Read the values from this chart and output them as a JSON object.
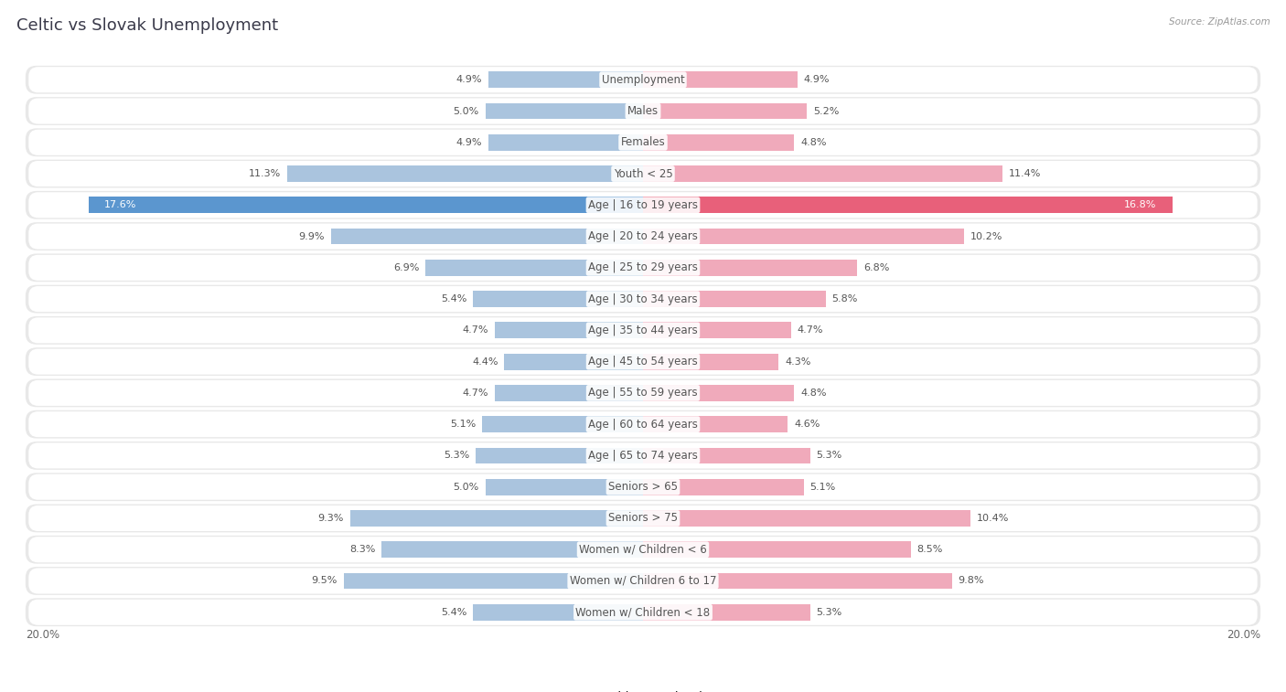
{
  "title": "Celtic vs Slovak Unemployment",
  "source": "Source: ZipAtlas.com",
  "categories": [
    "Unemployment",
    "Males",
    "Females",
    "Youth < 25",
    "Age | 16 to 19 years",
    "Age | 20 to 24 years",
    "Age | 25 to 29 years",
    "Age | 30 to 34 years",
    "Age | 35 to 44 years",
    "Age | 45 to 54 years",
    "Age | 55 to 59 years",
    "Age | 60 to 64 years",
    "Age | 65 to 74 years",
    "Seniors > 65",
    "Seniors > 75",
    "Women w/ Children < 6",
    "Women w/ Children 6 to 17",
    "Women w/ Children < 18"
  ],
  "celtic_values": [
    4.9,
    5.0,
    4.9,
    11.3,
    17.6,
    9.9,
    6.9,
    5.4,
    4.7,
    4.4,
    4.7,
    5.1,
    5.3,
    5.0,
    9.3,
    8.3,
    9.5,
    5.4
  ],
  "slovak_values": [
    4.9,
    5.2,
    4.8,
    11.4,
    16.8,
    10.2,
    6.8,
    5.8,
    4.7,
    4.3,
    4.8,
    4.6,
    5.3,
    5.1,
    10.4,
    8.5,
    9.8,
    5.3
  ],
  "celtic_color": "#aac4de",
  "slovak_color": "#f0aabb",
  "celtic_highlight_color": "#5b96cf",
  "slovak_highlight_color": "#e8607a",
  "row_bg_outer": "#e8e8e8",
  "row_bg_inner": "#ffffff",
  "background_color": "#ffffff",
  "max_value": 20.0,
  "legend_celtic": "Celtic",
  "legend_slovak": "Slovak",
  "title_fontsize": 13,
  "label_fontsize": 8.5,
  "value_fontsize": 8.0,
  "title_color": "#3a3a4a",
  "source_color": "#999999",
  "label_color": "#555555",
  "value_color": "#555555"
}
